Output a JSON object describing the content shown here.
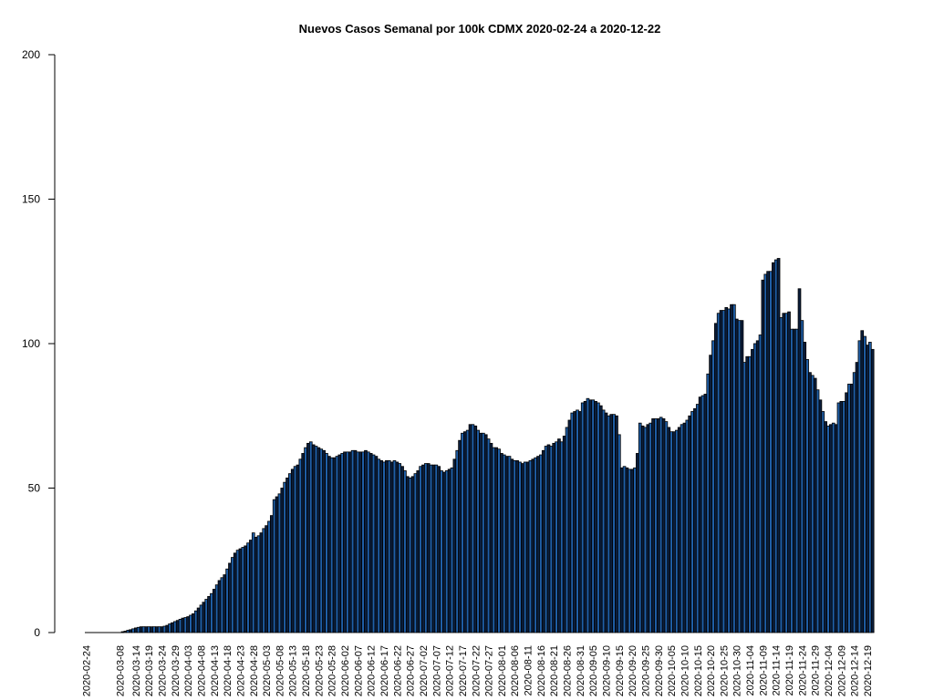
{
  "chart_data": {
    "type": "bar",
    "title": "Nuevos Casos Semanal por 100k CDMX 2020-02-24 a 2020-12-22",
    "xlabel": "",
    "ylabel": "",
    "ylim": [
      0,
      200
    ],
    "yticks": [
      0,
      50,
      100,
      150,
      200
    ],
    "start_date": "2020-02-24",
    "end_date": "2020-12-22",
    "xtick_labels": [
      "2020-02-24",
      "2020-03-08",
      "2020-03-14",
      "2020-03-19",
      "2020-03-24",
      "2020-03-29",
      "2020-04-03",
      "2020-04-08",
      "2020-04-13",
      "2020-04-18",
      "2020-04-23",
      "2020-04-28",
      "2020-05-03",
      "2020-05-08",
      "2020-05-13",
      "2020-05-18",
      "2020-05-23",
      "2020-05-28",
      "2020-06-02",
      "2020-06-07",
      "2020-06-12",
      "2020-06-17",
      "2020-06-22",
      "2020-06-27",
      "2020-07-02",
      "2020-07-07",
      "2020-07-12",
      "2020-07-17",
      "2020-07-22",
      "2020-07-27",
      "2020-08-01",
      "2020-08-06",
      "2020-08-11",
      "2020-08-16",
      "2020-08-21",
      "2020-08-26",
      "2020-08-31",
      "2020-09-05",
      "2020-09-10",
      "2020-09-15",
      "2020-09-20",
      "2020-09-25",
      "2020-09-30",
      "2020-10-05",
      "2020-10-10",
      "2020-10-15",
      "2020-10-20",
      "2020-10-25",
      "2020-10-30",
      "2020-11-04",
      "2020-11-09",
      "2020-11-14",
      "2020-11-19",
      "2020-11-24",
      "2020-11-29",
      "2020-12-04",
      "2020-12-09",
      "2020-12-14",
      "2020-12-19"
    ],
    "bar_colors": [
      "#1f5fa8",
      "#0b1e3c"
    ],
    "bar_edge_color": "#000000",
    "values": [
      0,
      0,
      0,
      0,
      0,
      0,
      0,
      0,
      0,
      0,
      0,
      0,
      0,
      0,
      0.3,
      0.5,
      0.8,
      1,
      1.3,
      1.6,
      1.8,
      2,
      2,
      2,
      2,
      2,
      2,
      2,
      2,
      2,
      2.2,
      2.5,
      3,
      3.4,
      3.8,
      4.2,
      4.6,
      5,
      5.2,
      5.5,
      6,
      6.5,
      7.5,
      8.5,
      9.5,
      10.5,
      11.5,
      12.5,
      13.5,
      15,
      16.5,
      18,
      19,
      20,
      22,
      24,
      26,
      27.5,
      28.5,
      29,
      29.5,
      30,
      31,
      32,
      34.5,
      33,
      33.5,
      34.5,
      36,
      37,
      38.5,
      40.5,
      46,
      47,
      48,
      50,
      52,
      53.5,
      55,
      56.5,
      57.5,
      58,
      60,
      62,
      64,
      65.5,
      66,
      65,
      64.5,
      64,
      63.5,
      63,
      62,
      61,
      60.5,
      60.5,
      61,
      61.5,
      62,
      62.5,
      62.5,
      62.5,
      63,
      63,
      62.5,
      62.5,
      62.5,
      63,
      62.5,
      62,
      61.5,
      61,
      60,
      59.5,
      59,
      59.5,
      59.5,
      59,
      59.5,
      59,
      58.5,
      57.5,
      56,
      54,
      53.5,
      54,
      55,
      56,
      57.5,
      58,
      58.5,
      58.5,
      58,
      58,
      58,
      57.5,
      56,
      55.5,
      56,
      56.5,
      57,
      60,
      63,
      66.5,
      69,
      69.5,
      70,
      72,
      72,
      71.5,
      70,
      69,
      69,
      68.5,
      67,
      65.5,
      64,
      64,
      63.5,
      62,
      61.5,
      61,
      61,
      60,
      59.5,
      59.5,
      59,
      58.5,
      59,
      59,
      59.5,
      60,
      60.5,
      61,
      61.5,
      63,
      64.5,
      65,
      64.5,
      65.5,
      66,
      67,
      66,
      68,
      71,
      73.5,
      76,
      76.5,
      77,
      76.5,
      79.5,
      80,
      81,
      80.5,
      80.5,
      80,
      79.5,
      78.5,
      77,
      76,
      75,
      75.5,
      75.5,
      75,
      68.5,
      57,
      57.5,
      57,
      56.5,
      56.5,
      57,
      62,
      72.5,
      71.5,
      71,
      72,
      72.5,
      74,
      74,
      74,
      74.5,
      74,
      73,
      71,
      69.5,
      69.5,
      70,
      71,
      72,
      72.5,
      73.5,
      75,
      76.5,
      77.5,
      79,
      81.5,
      82,
      82.5,
      89.5,
      96,
      101,
      107,
      110.5,
      111.5,
      111.5,
      112.5,
      112,
      113.5,
      113.5,
      108.5,
      108,
      108,
      93.5,
      95.5,
      95.5,
      98,
      100,
      101,
      103,
      122,
      124,
      125,
      125,
      128,
      129,
      129.5,
      109,
      110.5,
      110.5,
      111,
      105,
      105,
      105,
      119,
      108,
      100.5,
      94.5,
      90,
      89,
      88,
      84,
      80.5,
      76.5,
      73,
      71.5,
      72,
      72.5,
      72,
      79.5,
      80,
      80,
      83,
      86,
      86,
      90,
      93.5,
      101,
      104.5,
      102.5,
      99.5,
      100.5,
      98
    ]
  }
}
